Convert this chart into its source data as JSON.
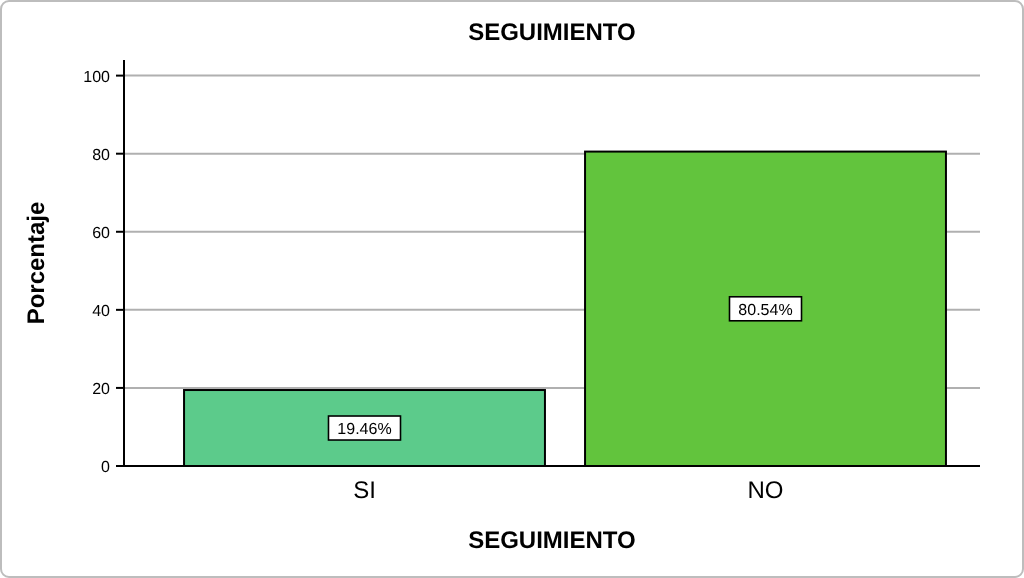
{
  "chart_data": {
    "type": "bar",
    "title": "SEGUIMIENTO",
    "xlabel": "SEGUIMIENTO",
    "ylabel": "Porcentaje",
    "categories": [
      "SI",
      "NO"
    ],
    "values": [
      19.46,
      80.54
    ],
    "colors": [
      "#5ccb8b",
      "#62c43d"
    ],
    "value_labels": [
      "19.46%",
      "80.54%"
    ],
    "ylim": [
      0,
      104
    ],
    "yticks": [
      0,
      20,
      40,
      60,
      80,
      100
    ],
    "grid": "y"
  }
}
